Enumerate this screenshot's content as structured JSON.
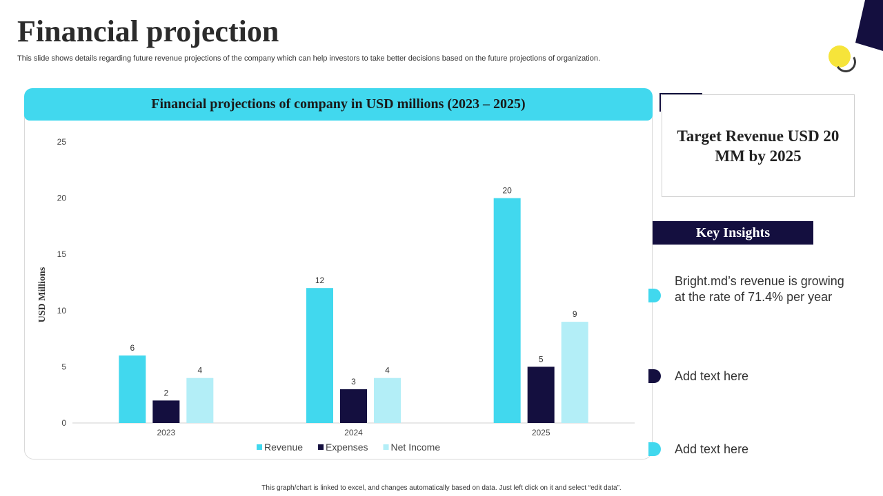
{
  "header": {
    "title": "Financial projection",
    "subtitle": "This slide shows details regarding future revenue projections of the company which can help investors to take better decisions based on the future projections of organization."
  },
  "chart_header": "Financial projections of company in USD millions (2023 – 2025)",
  "chart_data": {
    "type": "bar",
    "title": "Financial projections of company in USD millions (2023 – 2025)",
    "categories": [
      "2023",
      "2024",
      "2025"
    ],
    "series": [
      {
        "name": "Revenue",
        "values": [
          6,
          12,
          20
        ],
        "color": "#41d8ee"
      },
      {
        "name": "Expenses",
        "values": [
          2,
          3,
          5
        ],
        "color": "#140f3f"
      },
      {
        "name": "Net Income",
        "values": [
          4,
          4,
          9
        ],
        "color": "#b3eef7"
      }
    ],
    "xlabel": "",
    "ylabel": "USD Millions",
    "ylim": [
      0,
      25
    ],
    "yticks": [
      0,
      5,
      10,
      15,
      20,
      25
    ],
    "grid": false,
    "legend": "bottom"
  },
  "target": {
    "text": "Target Revenue USD 20 MM by 2025"
  },
  "insights": {
    "title": "Key Insights",
    "items": [
      {
        "text": "Bright.md’s revenue  is growing at the rate of 71.4% per year",
        "color": "#41d8ee"
      },
      {
        "text": "Add text here",
        "color": "#140f3f"
      },
      {
        "text": "Add text here",
        "color": "#41d8ee"
      }
    ]
  },
  "footnote": "This graph/chart is linked to excel, and changes automatically based on data. Just left click on it and select “edit data”.",
  "colors": {
    "accent": "#41d8ee",
    "navy": "#140f3f",
    "light": "#b3eef7",
    "yellow": "#f6e43a"
  }
}
